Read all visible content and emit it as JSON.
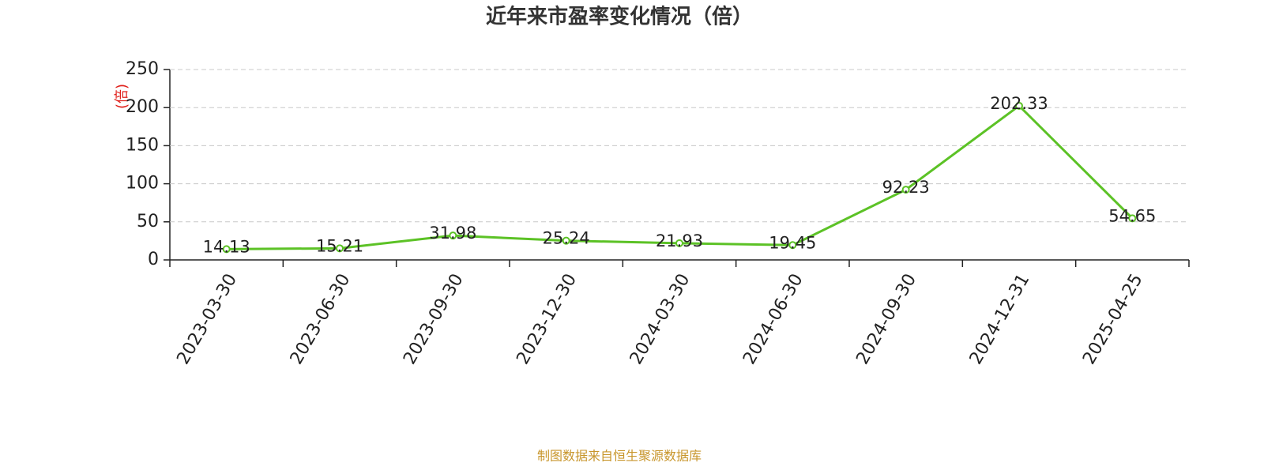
{
  "chart_data": {
    "type": "line",
    "title": "近年来市盈率变化情况（倍）",
    "y_label": "(倍)",
    "categories": [
      "2023-03-30",
      "2023-06-30",
      "2023-09-30",
      "2023-12-30",
      "2024-03-30",
      "2024-06-30",
      "2024-09-30",
      "2024-12-31",
      "2025-04-25"
    ],
    "values": [
      14.13,
      15.21,
      31.98,
      25.24,
      21.93,
      19.45,
      92.23,
      202.33,
      54.65
    ],
    "color": "#5cc226",
    "ylim": [
      0,
      250
    ],
    "yticks": [
      0,
      50,
      100,
      150,
      200,
      250
    ],
    "grid": true,
    "footer": "制图数据来自恒生聚源数据库"
  }
}
